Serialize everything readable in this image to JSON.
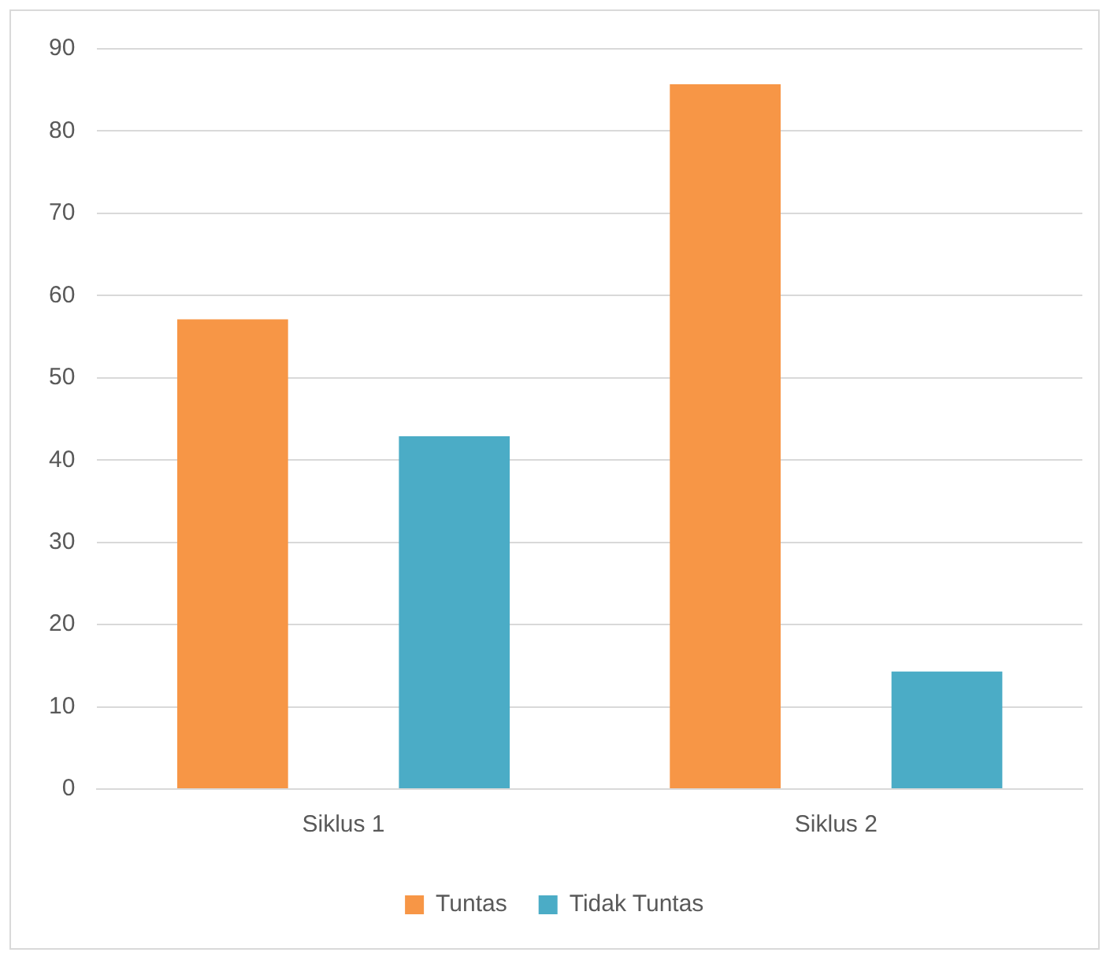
{
  "chart_data": {
    "type": "bar",
    "categories": [
      "Siklus 1",
      "Siklus 2"
    ],
    "series": [
      {
        "name": "Tuntas",
        "color": "#f79646",
        "values": [
          57.1,
          85.7
        ]
      },
      {
        "name": "Tidak Tuntas",
        "color": "#4bacc6",
        "values": [
          42.9,
          14.3
        ]
      }
    ],
    "ylim": [
      0,
      90
    ],
    "yticks": [
      0,
      10,
      20,
      30,
      40,
      50,
      60,
      70,
      80,
      90
    ],
    "grid": "y",
    "legend": "bottom"
  }
}
